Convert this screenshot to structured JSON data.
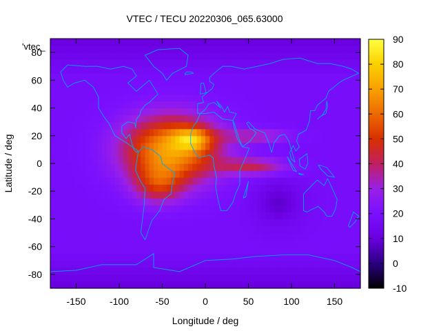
{
  "chart_data": {
    "type": "heatmap",
    "title": "VTEC / TECU 20220306_065.63000",
    "xlabel": "Longitude / deg",
    "ylabel": "Latitude / deg",
    "xlim": [
      -180,
      180
    ],
    "ylim": [
      -90,
      90
    ],
    "x_ticks": [
      -150,
      -100,
      -50,
      0,
      50,
      100,
      150
    ],
    "y_ticks": [
      -80,
      -60,
      -40,
      -20,
      0,
      20,
      40,
      60,
      80
    ],
    "colorbar": {
      "min": -10,
      "max": 90,
      "ticks": [
        -10,
        0,
        10,
        20,
        30,
        40,
        50,
        60,
        70,
        80,
        90
      ],
      "palette": [
        "#000000",
        "#2a0080",
        "#6a00e0",
        "#7a10ff",
        "#9a20e8",
        "#c02060",
        "#d83000",
        "#ee6a00",
        "#f8a000",
        "#fbd000",
        "#ffff40"
      ]
    },
    "legend_key": "'vtec_",
    "background_level": 18,
    "anomalies": [
      {
        "lon": -40,
        "lat": 10,
        "amp": 52,
        "slon": 55,
        "slat": 24
      },
      {
        "lon": -55,
        "lat": -15,
        "amp": 22,
        "slon": 28,
        "slat": 14
      },
      {
        "lon": -15,
        "lat": 18,
        "amp": 28,
        "slon": 22,
        "slat": 8
      },
      {
        "lon": 55,
        "lat": -2,
        "amp": 22,
        "slon": 40,
        "slat": 6
      },
      {
        "lon": 60,
        "lat": 20,
        "amp": 16,
        "slon": 40,
        "slat": 5
      },
      {
        "lon": 85,
        "lat": -28,
        "amp": -10,
        "slon": 25,
        "slat": 15
      }
    ],
    "coastline_color": "#00a8ff"
  }
}
